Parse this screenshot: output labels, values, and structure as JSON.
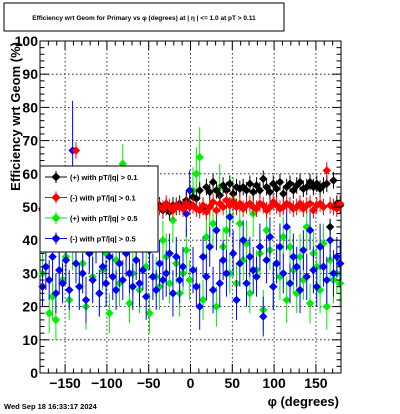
{
  "chart_data": {
    "type": "scatter",
    "title": "Efficiency wrt Geom for Primary vs φ (degrees) at |  η | <= 1.0 at pT > 0.11",
    "xlabel": "φ (degrees)",
    "ylabel": "Efficiency wrt Geom (%)",
    "xlim": [
      -180,
      180
    ],
    "ylim": [
      0,
      100
    ],
    "xticks": [
      -150,
      -100,
      -50,
      0,
      50,
      100,
      150
    ],
    "xtick_labels": [
      "−150",
      "−100",
      "−50",
      "0",
      "50",
      "100",
      "150"
    ],
    "yticks": [
      0,
      10,
      20,
      30,
      40,
      50,
      60,
      70,
      80,
      90,
      100
    ],
    "ytick_labels": [
      "0",
      "10",
      "20",
      "30",
      "40",
      "50",
      "60",
      "70",
      "80",
      "90",
      "100"
    ],
    "grid": true,
    "legend_position": "left",
    "x": [
      -177,
      -173,
      -169,
      -165,
      -161,
      -157,
      -153,
      -149,
      -145,
      -141,
      -137,
      -133,
      -129,
      -125,
      -121,
      -117,
      -113,
      -109,
      -105,
      -101,
      -97,
      -93,
      -89,
      -85,
      -81,
      -77,
      -73,
      -69,
      -65,
      -61,
      -57,
      -53,
      -49,
      -45,
      -41,
      -37,
      -33,
      -29,
      -25,
      -21,
      -17,
      -13,
      -9,
      -5,
      -1,
      3,
      7,
      11,
      15,
      19,
      23,
      27,
      31,
      35,
      39,
      43,
      47,
      51,
      55,
      59,
      63,
      67,
      71,
      75,
      79,
      83,
      87,
      91,
      95,
      99,
      103,
      107,
      111,
      115,
      119,
      123,
      127,
      131,
      135,
      139,
      143,
      147,
      151,
      155,
      159,
      163,
      167,
      171,
      175,
      179
    ],
    "series": [
      {
        "name": "(+) with pT/|q| > 0.1",
        "color": "#000000",
        "marker": "diamond",
        "y": [
          49.5,
          50.0,
          48.5,
          50.5,
          49.0,
          51.0,
          50.0,
          49.5,
          50.5,
          49.0,
          50.0,
          51.5,
          49.5,
          48.0,
          50.0,
          50.5,
          49.0,
          50.0,
          51.0,
          49.5,
          50.0,
          48.5,
          50.5,
          49.5,
          50.0,
          51.0,
          49.0,
          50.0,
          50.5,
          49.5,
          50.0,
          49.0,
          51.0,
          50.0,
          49.5,
          50.5,
          49.0,
          50.0,
          48.5,
          50.5,
          50.0,
          51.0,
          50.0,
          52.0,
          51.0,
          53.0,
          52.5,
          55.0,
          50.0,
          56.0,
          54.5,
          57.5,
          55.0,
          53.5,
          56.5,
          55.0,
          57.0,
          54.0,
          56.0,
          55.5,
          56.0,
          55.0,
          57.0,
          54.5,
          56.5,
          55.0,
          58.5,
          56.0,
          54.5,
          57.0,
          55.5,
          57.5,
          54.0,
          56.0,
          57.0,
          55.0,
          56.5,
          57.5,
          55.5,
          56.0,
          57.5,
          56.0,
          57.0,
          55.5,
          56.5,
          57.0,
          44.0,
          58.0,
          51.0,
          50.5
        ],
        "yerr": [
          2.5,
          2.5,
          2.5,
          2.5,
          2.5,
          2.5,
          2.5,
          2.5,
          2.5,
          2.5,
          2.5,
          2.5,
          2.5,
          2.5,
          2.5,
          2.5,
          2.5,
          2.5,
          2.5,
          2.5,
          2.5,
          2.5,
          2.5,
          2.5,
          2.5,
          2.5,
          2.5,
          2.5,
          2.5,
          2.5,
          2.5,
          2.5,
          2.5,
          2.5,
          2.5,
          2.5,
          2.5,
          2.5,
          2.5,
          2.5,
          2.5,
          2.5,
          2.5,
          2.5,
          2.5,
          2.5,
          2.5,
          2.5,
          2.5,
          2.5,
          2.5,
          2.5,
          2.5,
          2.5,
          2.5,
          2.5,
          2.5,
          2.5,
          2.5,
          2.5,
          2.5,
          2.5,
          2.5,
          2.5,
          2.5,
          2.5,
          2.5,
          2.5,
          2.5,
          2.5,
          2.5,
          2.5,
          2.5,
          2.5,
          2.5,
          2.5,
          2.5,
          2.5,
          2.5,
          2.5,
          2.5,
          2.5,
          2.5,
          2.5,
          2.5,
          2.5,
          2.5,
          2.5,
          2.5,
          2.5
        ]
      },
      {
        "name": "(-) with pT/|q| > 0.1",
        "color": "#ff0000",
        "marker": "diamond",
        "y": [
          49.0,
          50.5,
          48.5,
          51.0,
          49.5,
          50.0,
          51.5,
          49.0,
          50.5,
          49.5,
          67.0,
          50.0,
          49.0,
          51.0,
          50.5,
          48.5,
          50.0,
          49.5,
          51.0,
          50.0,
          49.5,
          50.5,
          48.5,
          50.0,
          51.0,
          49.5,
          50.0,
          50.5,
          49.0,
          50.5,
          49.5,
          50.0,
          51.0,
          49.0,
          50.5,
          50.0,
          49.5,
          51.0,
          50.0,
          49.0,
          50.5,
          50.0,
          49.5,
          51.0,
          50.0,
          50.5,
          49.5,
          49.0,
          50.5,
          48.5,
          50.0,
          51.5,
          49.0,
          51.0,
          50.0,
          52.0,
          50.5,
          51.5,
          50.0,
          51.0,
          49.5,
          50.5,
          51.0,
          50.0,
          49.5,
          51.0,
          50.5,
          49.0,
          50.0,
          51.5,
          50.5,
          49.5,
          50.0,
          51.0,
          50.5,
          49.5,
          50.0,
          51.0,
          49.5,
          50.5,
          51.0,
          49.0,
          50.5,
          51.0,
          50.0,
          61.0,
          50.5,
          50.0,
          49.5,
          51.0
        ],
        "yerr": [
          2.5,
          2.5,
          2.5,
          2.5,
          2.5,
          2.5,
          2.5,
          2.5,
          2.5,
          2.5,
          2.5,
          2.5,
          2.5,
          2.5,
          2.5,
          2.5,
          2.5,
          2.5,
          2.5,
          2.5,
          2.5,
          2.5,
          2.5,
          2.5,
          2.5,
          2.5,
          2.5,
          2.5,
          2.5,
          2.5,
          2.5,
          2.5,
          2.5,
          2.5,
          2.5,
          2.5,
          2.5,
          2.5,
          2.5,
          2.5,
          2.5,
          2.5,
          2.5,
          2.5,
          2.5,
          2.5,
          2.5,
          2.5,
          2.5,
          2.5,
          2.5,
          2.5,
          2.5,
          2.5,
          2.5,
          2.5,
          2.5,
          2.5,
          2.5,
          2.5,
          2.5,
          2.5,
          2.5,
          2.5,
          2.5,
          2.5,
          2.5,
          2.5,
          2.5,
          2.5,
          2.5,
          2.5,
          2.5,
          2.5,
          2.5,
          2.5,
          2.5,
          2.5,
          2.5,
          2.5,
          2.5,
          2.5,
          2.5,
          2.5,
          2.5,
          2.5,
          2.5,
          2.5,
          2.5,
          2.5
        ]
      },
      {
        "name": "(+) with pT/|q| > 0.5",
        "color": "#00ee00",
        "marker": "diamond",
        "y": [
          30.0,
          42.0,
          18.0,
          23.0,
          16.0,
          40.0,
          28.0,
          35.0,
          22.0,
          38.0,
          45.0,
          26.0,
          33.0,
          20.0,
          37.0,
          29.0,
          41.0,
          24.0,
          31.0,
          36.0,
          18.0,
          47.0,
          34.0,
          27.0,
          63.0,
          39.0,
          21.0,
          30.0,
          38.0,
          25.0,
          43.0,
          32.0,
          18.0,
          44.0,
          29.0,
          26.0,
          40.0,
          35.0,
          27.0,
          46.0,
          33.0,
          24.0,
          30.0,
          37.0,
          28.0,
          55.0,
          60.0,
          65.0,
          22.0,
          41.0,
          50.0,
          45.0,
          20.0,
          56.0,
          38.0,
          43.0,
          30.0,
          52.0,
          27.0,
          45.0,
          34.0,
          39.0,
          24.0,
          48.0,
          31.0,
          36.0,
          19.0,
          43.0,
          37.0,
          26.0,
          33.0,
          29.0,
          41.0,
          22.0,
          38.0,
          31.0,
          24.0,
          35.0,
          28.0,
          44.0,
          21.0,
          36.0,
          32.0,
          25.0,
          39.0,
          20.0,
          34.0,
          28.0,
          30.0,
          27.0
        ],
        "yerr": [
          6,
          7,
          6,
          7,
          6,
          7,
          6,
          7,
          6,
          7,
          6,
          7,
          6,
          7,
          6,
          7,
          6,
          7,
          6,
          7,
          6,
          7,
          6,
          7,
          6,
          7,
          6,
          7,
          6,
          7,
          6,
          7,
          6,
          7,
          6,
          7,
          6,
          7,
          6,
          7,
          6,
          7,
          6,
          7,
          6,
          7,
          8,
          9,
          6,
          7,
          6,
          7,
          6,
          7,
          6,
          7,
          6,
          7,
          6,
          7,
          6,
          7,
          6,
          7,
          6,
          7,
          6,
          7,
          6,
          7,
          6,
          7,
          6,
          7,
          6,
          7,
          6,
          7,
          6,
          7,
          6,
          7,
          6,
          7,
          6,
          7,
          6,
          7,
          6,
          7
        ]
      },
      {
        "name": "(-) with pT/|q| > 0.5",
        "color": "#0000ff",
        "marker": "diamond",
        "y": [
          26.0,
          32.0,
          28.0,
          35.0,
          24.0,
          31.0,
          27.0,
          34.0,
          25.0,
          67.0,
          33.0,
          26.0,
          30.0,
          22.0,
          36.0,
          28.0,
          39.0,
          24.0,
          32.0,
          27.0,
          35.0,
          29.0,
          25.0,
          33.0,
          28.0,
          36.0,
          30.0,
          26.0,
          34.0,
          27.0,
          31.0,
          23.0,
          37.0,
          29.0,
          25.0,
          33.0,
          28.0,
          30.0,
          36.0,
          24.0,
          35.0,
          28.0,
          32.0,
          48.0,
          55.0,
          31.0,
          26.0,
          20.0,
          35.0,
          29.0,
          38.0,
          25.0,
          43.0,
          27.0,
          34.0,
          30.0,
          47.0,
          36.0,
          22.0,
          33.0,
          40.0,
          27.0,
          35.0,
          31.0,
          29.0,
          38.0,
          17.0,
          34.0,
          41.0,
          26.0,
          33.0,
          38.0,
          30.0,
          44.0,
          27.0,
          35.0,
          32.0,
          25.0,
          37.0,
          29.0,
          43.0,
          31.0,
          26.0,
          38.0,
          32.0,
          28.0,
          40.0,
          30.0,
          35.0,
          33.0
        ],
        "yerr": [
          6,
          7,
          6,
          7,
          6,
          7,
          6,
          7,
          6,
          15,
          6,
          7,
          6,
          7,
          6,
          7,
          6,
          7,
          6,
          7,
          6,
          7,
          6,
          7,
          6,
          7,
          6,
          7,
          6,
          7,
          6,
          7,
          6,
          7,
          6,
          7,
          6,
          7,
          6,
          7,
          6,
          7,
          6,
          7,
          6,
          7,
          6,
          7,
          6,
          7,
          6,
          7,
          6,
          7,
          6,
          7,
          6,
          7,
          6,
          7,
          6,
          7,
          6,
          7,
          6,
          7,
          6,
          7,
          6,
          7,
          6,
          7,
          6,
          7,
          6,
          7,
          6,
          7,
          6,
          7,
          6,
          7,
          6,
          7,
          6,
          7,
          6,
          7,
          6,
          7
        ]
      }
    ]
  },
  "footer": {
    "timestamp": "Wed Sep 18 16:33:17 2024"
  }
}
